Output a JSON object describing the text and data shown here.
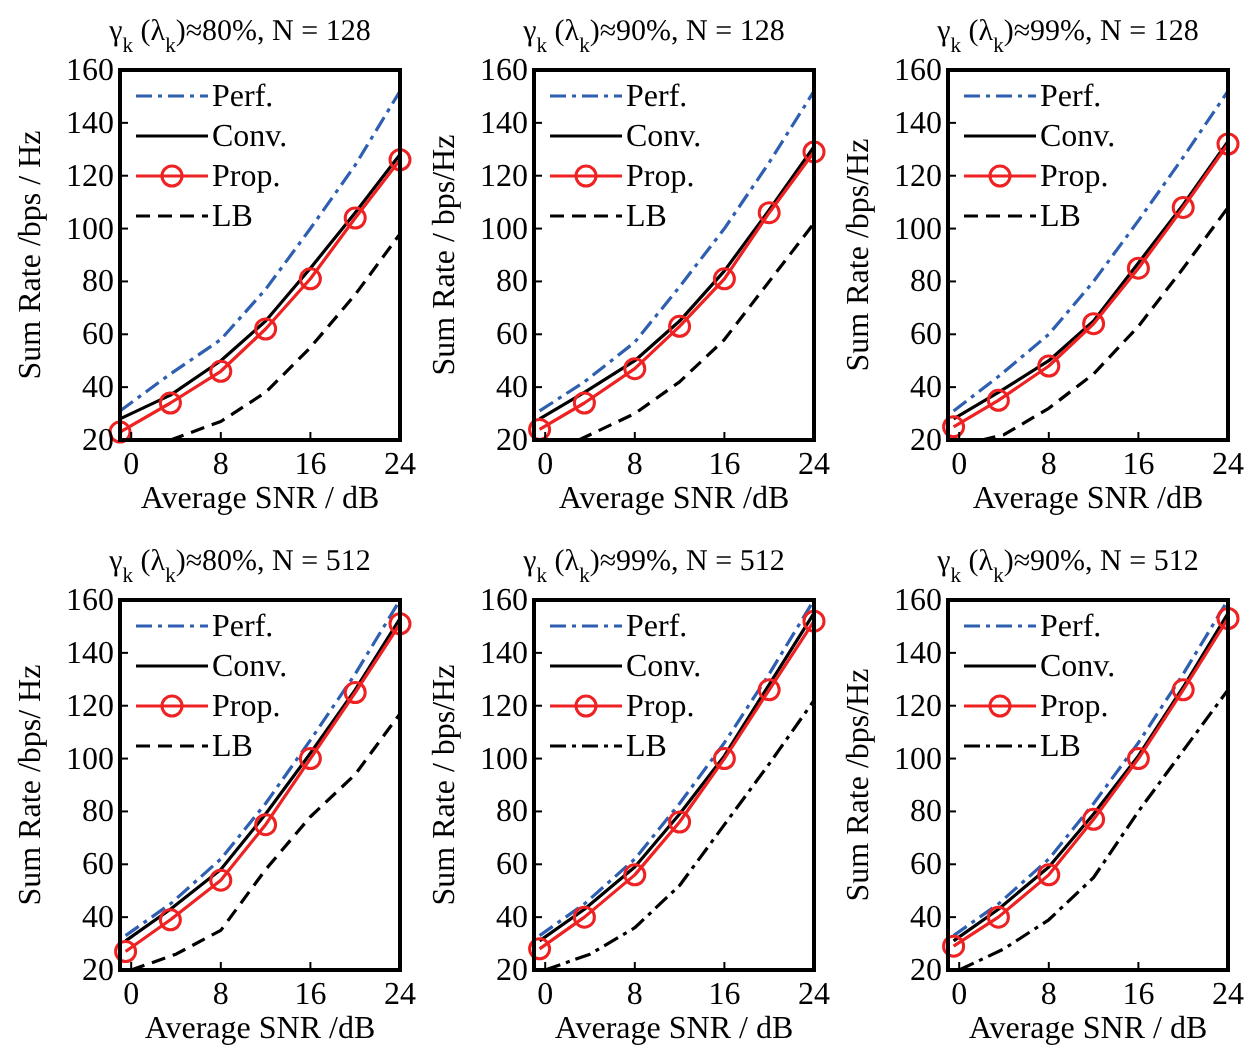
{
  "chart_data": [
    {
      "type": "line",
      "title": "γ$_{k}$ (λ$_{k}$)≈80%, N = 128",
      "xlabel": "Average SNR / dB",
      "ylabel": "Sum Rate /bps / Hz",
      "xlim": [
        -1,
        24
      ],
      "ylim": [
        20,
        160
      ],
      "xticks": [
        0,
        8,
        16,
        24
      ],
      "yticks": [
        20,
        40,
        60,
        80,
        100,
        120,
        140,
        160
      ],
      "legend": "top left",
      "grid": false,
      "x": [
        -1,
        3.5,
        8,
        12,
        16,
        20,
        24
      ],
      "series": [
        {
          "name": "Perf.",
          "color": "#2e5fb0",
          "line_style": "dashdot",
          "marker": "none",
          "values": [
            31,
            45,
            58,
            77,
            100,
            124,
            152
          ]
        },
        {
          "name": "Conv.",
          "color": "#000000",
          "line_style": "solid",
          "marker": "none",
          "values": [
            28,
            37,
            50,
            65,
            85,
            106,
            128
          ]
        },
        {
          "name": "Prop.",
          "color": "#ee2222",
          "line_style": "solid",
          "marker": "circle",
          "values": [
            23,
            34,
            46,
            62,
            81,
            104,
            126
          ]
        },
        {
          "name": "LB",
          "color": "#000000",
          "line_style": "dashed",
          "marker": "none",
          "x": [
            3.5,
            8,
            12,
            16,
            20,
            24
          ],
          "values": [
            20,
            27,
            38,
            55,
            75,
            98
          ]
        }
      ]
    },
    {
      "type": "line",
      "title": "γ$_{k}$ (λ$_{k}$)≈90%, N = 128",
      "xlabel": "Average SNR /dB",
      "ylabel": "Sum Rate / bps/Hz",
      "xlim": [
        -1,
        24
      ],
      "ylim": [
        20,
        160
      ],
      "xticks": [
        0,
        8,
        16,
        24
      ],
      "yticks": [
        20,
        40,
        60,
        80,
        100,
        120,
        140,
        160
      ],
      "legend": "top left",
      "grid": false,
      "x": [
        -0.5,
        3.5,
        8,
        12,
        16,
        20,
        24
      ],
      "series": [
        {
          "name": "Perf.",
          "color": "#2e5fb0",
          "line_style": "dashdot",
          "marker": "none",
          "values": [
            31,
            42,
            57,
            78,
            100,
            125,
            152
          ]
        },
        {
          "name": "Conv.",
          "color": "#000000",
          "line_style": "solid",
          "marker": "none",
          "values": [
            28,
            38,
            50,
            65,
            84,
            107,
            131
          ]
        },
        {
          "name": "Prop.",
          "color": "#ee2222",
          "line_style": "solid",
          "marker": "circle",
          "values": [
            24,
            34,
            47,
            63,
            81,
            106,
            129
          ]
        },
        {
          "name": "LB",
          "color": "#000000",
          "line_style": "dashed",
          "marker": "none",
          "x": [
            3,
            8,
            12,
            16,
            20,
            24
          ],
          "values": [
            20,
            30,
            42,
            58,
            80,
            102
          ]
        }
      ]
    },
    {
      "type": "line",
      "title": "γ$_{k}$ (λ$_{k}$)≈99%, N = 128",
      "xlabel": "Average SNR /dB",
      "ylabel": "Sum Rate /bps/Hz",
      "xlim": [
        -1,
        24
      ],
      "ylim": [
        20,
        160
      ],
      "xticks": [
        0,
        8,
        16,
        24
      ],
      "yticks": [
        20,
        40,
        60,
        80,
        100,
        120,
        140,
        160
      ],
      "legend": "top left",
      "grid": false,
      "x": [
        -0.5,
        3.5,
        8,
        12,
        16,
        20,
        24
      ],
      "series": [
        {
          "name": "Perf.",
          "color": "#2e5fb0",
          "line_style": "dashdot",
          "marker": "none",
          "values": [
            31,
            44,
            60,
            80,
            103,
            127,
            152
          ]
        },
        {
          "name": "Conv.",
          "color": "#000000",
          "line_style": "solid",
          "marker": "none",
          "values": [
            28,
            38,
            50,
            65,
            87,
            109,
            133
          ]
        },
        {
          "name": "Prop.",
          "color": "#ee2222",
          "line_style": "solid",
          "marker": "circle",
          "values": [
            25,
            35,
            48,
            64,
            85,
            108,
            132
          ]
        },
        {
          "name": "LB",
          "color": "#000000",
          "line_style": "dashed",
          "marker": "none",
          "x": [
            2,
            4,
            8,
            12,
            16,
            20,
            24
          ],
          "values": [
            20,
            22,
            32,
            45,
            63,
            85,
            108
          ]
        }
      ]
    },
    {
      "type": "line",
      "title": "γ$_{k}$ (λ$_{k}$)≈80%, N = 512",
      "xlabel": "Average SNR /dB",
      "ylabel": "Sum Rate /bps/ Hz",
      "xlim": [
        -1,
        24
      ],
      "ylim": [
        20,
        160
      ],
      "xticks": [
        0,
        8,
        16,
        24
      ],
      "yticks": [
        20,
        40,
        60,
        80,
        100,
        120,
        140,
        160
      ],
      "legend": "top left",
      "grid": false,
      "x": [
        -0.5,
        3.5,
        8,
        12,
        16,
        20,
        24
      ],
      "series": [
        {
          "name": "Perf.",
          "color": "#2e5fb0",
          "line_style": "dashdot",
          "marker": "none",
          "values": [
            33,
            45,
            62,
            83,
            107,
            132,
            160
          ]
        },
        {
          "name": "Conv.",
          "color": "#000000",
          "line_style": "solid",
          "marker": "none",
          "values": [
            31,
            43,
            58,
            79,
            102,
            126,
            153
          ]
        },
        {
          "name": "Prop.",
          "color": "#ee2222",
          "line_style": "solid",
          "marker": "circle",
          "values": [
            27,
            39,
            54,
            75,
            100,
            125,
            151
          ]
        },
        {
          "name": "LB",
          "color": "#000000",
          "line_style": "dashed",
          "marker": "none",
          "x": [
            0,
            4,
            8,
            12,
            16,
            20,
            24
          ],
          "values": [
            20,
            26,
            35,
            58,
            78,
            94,
            117
          ]
        }
      ]
    },
    {
      "type": "line",
      "title": "γ$_{k}$ (λ$_{k}$)≈99%, N = 512",
      "xlabel": "Average SNR / dB",
      "ylabel": "Sum Rate  / bps/Hz",
      "xlim": [
        -1,
        24
      ],
      "ylim": [
        20,
        160
      ],
      "xticks": [
        0,
        8,
        16,
        24
      ],
      "yticks": [
        20,
        40,
        60,
        80,
        100,
        120,
        140,
        160
      ],
      "legend": "top left",
      "grid": false,
      "x": [
        -0.5,
        3.5,
        8,
        12,
        16,
        20,
        24
      ],
      "series": [
        {
          "name": "Perf.",
          "color": "#2e5fb0",
          "line_style": "dashdot",
          "marker": "none",
          "values": [
            33,
            45,
            62,
            83,
            106,
            132,
            160
          ]
        },
        {
          "name": "Conv.",
          "color": "#000000",
          "line_style": "solid",
          "marker": "none",
          "values": [
            31,
            43,
            59,
            79,
            101,
            128,
            155
          ]
        },
        {
          "name": "Prop.",
          "color": "#ee2222",
          "line_style": "solid",
          "marker": "circle",
          "values": [
            28,
            40,
            56,
            76,
            100,
            126,
            152
          ]
        },
        {
          "name": "LB",
          "color": "#000000",
          "line_style": "dashdot",
          "marker": "none",
          "x": [
            0,
            4,
            8,
            12,
            16,
            20,
            24
          ],
          "values": [
            20,
            26,
            36,
            52,
            75,
            98,
            122
          ]
        }
      ]
    },
    {
      "type": "line",
      "title": "γ$_{k}$ (λ$_{k}$)≈90%, N = 512",
      "xlabel": "Average SNR / dB",
      "ylabel": "Sum Rate /bps/Hz",
      "xlim": [
        -1,
        24
      ],
      "ylim": [
        20,
        160
      ],
      "xticks": [
        0,
        8,
        16,
        24
      ],
      "yticks": [
        20,
        40,
        60,
        80,
        100,
        120,
        140,
        160
      ],
      "legend": "top left",
      "grid": false,
      "x": [
        -0.5,
        3.5,
        8,
        12,
        16,
        20,
        24
      ],
      "series": [
        {
          "name": "Perf.",
          "color": "#2e5fb0",
          "line_style": "dashdot",
          "marker": "none",
          "values": [
            33,
            45,
            62,
            83,
            106,
            132,
            160
          ]
        },
        {
          "name": "Conv.",
          "color": "#000000",
          "line_style": "solid",
          "marker": "none",
          "values": [
            31,
            43,
            59,
            79,
            101,
            127,
            155
          ]
        },
        {
          "name": "Prop.",
          "color": "#ee2222",
          "line_style": "solid",
          "marker": "circle",
          "values": [
            29,
            40,
            56,
            77,
            100,
            126,
            153
          ]
        },
        {
          "name": "LB",
          "color": "#000000",
          "line_style": "dashdot",
          "marker": "none",
          "x": [
            0,
            4,
            8,
            12,
            16,
            20,
            24
          ],
          "values": [
            20,
            28,
            39,
            55,
            80,
            103,
            126
          ]
        }
      ]
    }
  ]
}
